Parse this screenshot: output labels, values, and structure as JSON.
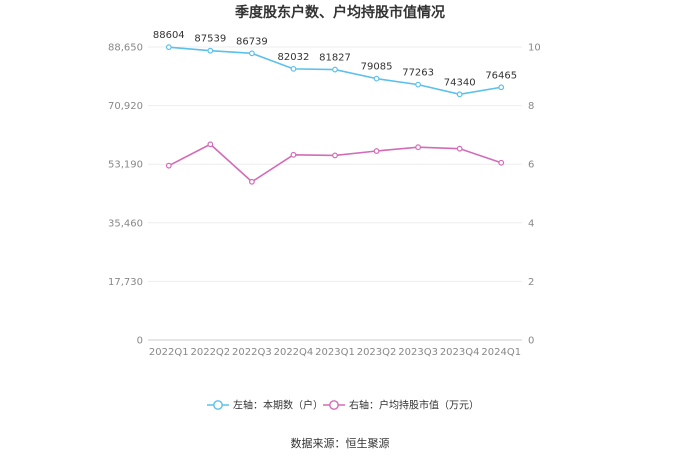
{
  "chart_data": {
    "type": "line",
    "title": "季度股东户数、户均持股市值情况",
    "categories": [
      "2022Q1",
      "2022Q2",
      "2022Q3",
      "2022Q4",
      "2023Q1",
      "2023Q2",
      "2023Q3",
      "2023Q4",
      "2024Q1"
    ],
    "left_axis": {
      "ticks": [
        "0",
        "17,730",
        "35,460",
        "53,190",
        "70,920",
        "88,650"
      ],
      "ylim": [
        0,
        88650
      ]
    },
    "right_axis": {
      "ticks": [
        "0",
        "2",
        "4",
        "6",
        "8",
        "10"
      ],
      "ylim": [
        0,
        10
      ]
    },
    "series": [
      {
        "name": "左轴：本期数（户）",
        "axis": "left",
        "color": "#5bc0eb",
        "values": [
          88604,
          87539,
          86739,
          82032,
          81827,
          79085,
          77263,
          74340,
          76465
        ],
        "labels": [
          "88604",
          "87539",
          "86739",
          "82032",
          "81827",
          "79085",
          "77263",
          "74340",
          "76465"
        ]
      },
      {
        "name": "右轴：户均持股市值（万元）",
        "axis": "right",
        "color": "#d36bb8",
        "values": [
          5.95,
          6.68,
          5.4,
          6.32,
          6.3,
          6.45,
          6.58,
          6.53,
          6.05
        ]
      }
    ],
    "grid": true,
    "legend_position": "bottom"
  },
  "source_text": "数据来源：恒生聚源"
}
